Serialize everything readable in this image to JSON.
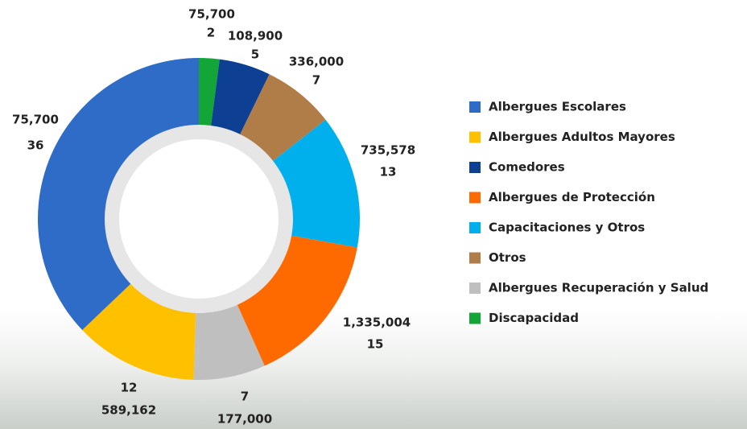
{
  "chart_data": {
    "type": "donut",
    "categories": [
      "Albergues Escolares",
      "Albergues Adultos Mayores",
      "Comedores",
      "Albergues de Protección",
      "Capacitaciones y Otros",
      "Otros",
      "Albergues Recuperación y Salud",
      "Discapacidad"
    ],
    "values": [
      36,
      12,
      5,
      15,
      13,
      7,
      7,
      2
    ],
    "amounts": [
      75700,
      589162,
      108900,
      1335004,
      735578,
      336000,
      177000,
      75700
    ],
    "amount_labels": [
      "75,700",
      "589,162",
      "108,900",
      "1,335,004",
      "735,578",
      "336,000",
      "177,000",
      "75,700"
    ],
    "colors": [
      "#2f6cc7",
      "#ffc000",
      "#0d3f93",
      "#ff6a00",
      "#00b0ec",
      "#b07d48",
      "#bfbfbf",
      "#13a538"
    ],
    "legend": "right"
  }
}
